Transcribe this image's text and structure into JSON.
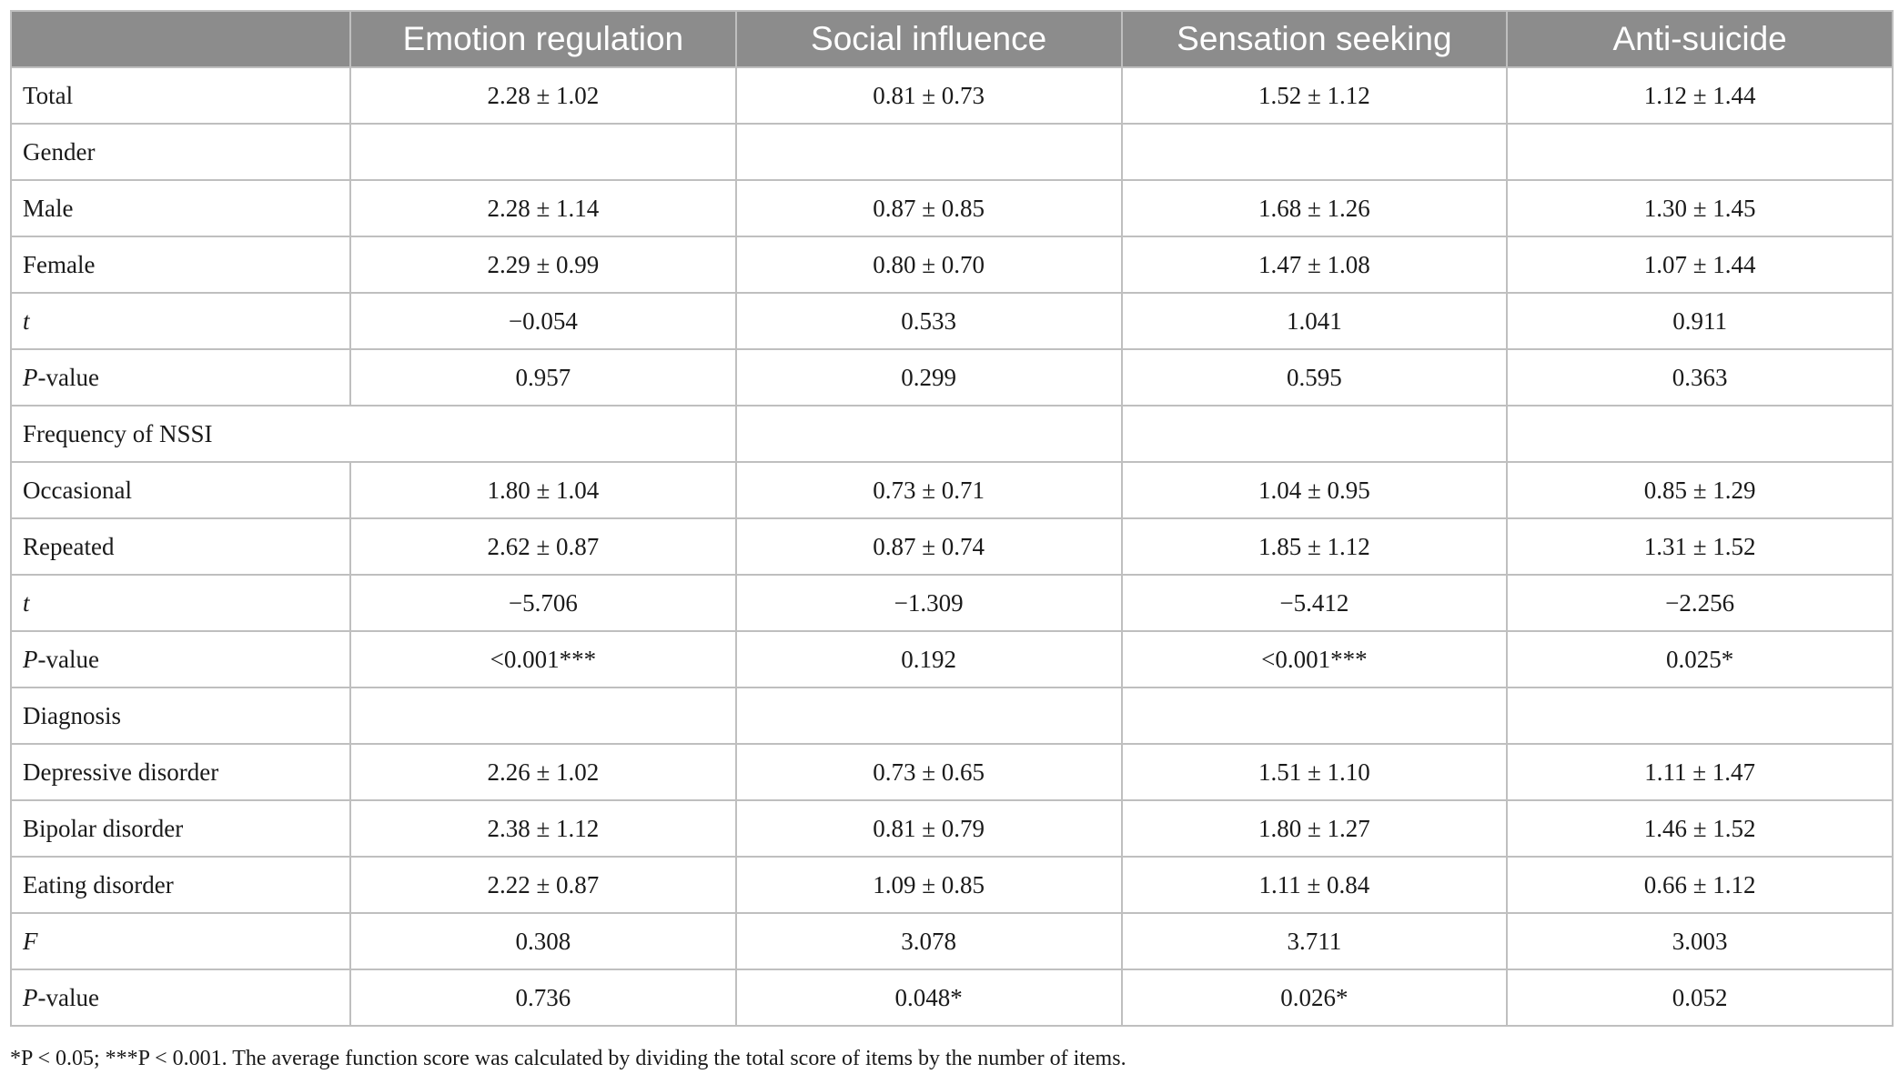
{
  "headers": [
    "",
    "Emotion regulation",
    "Social influence",
    "Sensation seeking",
    "Anti-suicide"
  ],
  "rows": [
    {
      "label": "Total",
      "cells": [
        "2.28 ± 1.02",
        "0.81 ± 0.73",
        "1.52 ± 1.12",
        "1.12 ± 1.44"
      ]
    },
    {
      "label": "Gender",
      "cells": [
        "",
        "",
        "",
        ""
      ]
    },
    {
      "label": "Male",
      "cells": [
        "2.28 ± 1.14",
        "0.87 ± 0.85",
        "1.68 ± 1.26",
        "1.30 ± 1.45"
      ]
    },
    {
      "label": "Female",
      "cells": [
        "2.29 ± 0.99",
        "0.80 ± 0.70",
        "1.47 ± 1.08",
        "1.07 ± 1.44"
      ]
    },
    {
      "label": "t",
      "cells": [
        "−0.054",
        "0.533",
        "1.041",
        "0.911"
      ]
    },
    {
      "label_italic": "P",
      "label_rest": "-value",
      "cells": [
        "0.957",
        "0.299",
        "0.595",
        "0.363"
      ]
    },
    {
      "label": "Frequency of NSSI",
      "cells": [
        "",
        "",
        "",
        ""
      ]
    },
    {
      "label": "Occasional",
      "cells": [
        "1.80 ± 1.04",
        "0.73 ± 0.71",
        "1.04 ± 0.95",
        "0.85 ± 1.29"
      ]
    },
    {
      "label": "Repeated",
      "cells": [
        "2.62 ± 0.87",
        "0.87 ± 0.74",
        "1.85 ± 1.12",
        "1.31 ± 1.52"
      ]
    },
    {
      "label": "t",
      "cells": [
        "−5.706",
        "−1.309",
        "−5.412",
        "−2.256"
      ]
    },
    {
      "label_italic": "P",
      "label_rest": "-value",
      "cells": [
        "<0.001***",
        "0.192",
        "<0.001***",
        "0.025*"
      ]
    },
    {
      "label": "Diagnosis",
      "cells": [
        "",
        "",
        "",
        ""
      ]
    },
    {
      "label": "Depressive disorder",
      "cells": [
        "2.26 ± 1.02",
        "0.73 ± 0.65",
        "1.51 ± 1.10",
        "1.11 ± 1.47"
      ]
    },
    {
      "label": "Bipolar disorder",
      "cells": [
        "2.38 ± 1.12",
        "0.81 ± 0.79",
        "1.80 ± 1.27",
        "1.46 ± 1.52"
      ]
    },
    {
      "label": "Eating disorder",
      "cells": [
        "2.22 ± 0.87",
        "1.09 ± 0.85",
        "1.11 ± 0.84",
        "0.66 ± 1.12"
      ]
    },
    {
      "label": "F",
      "cells": [
        "0.308",
        "3.078",
        "3.711",
        "3.003"
      ]
    },
    {
      "label_italic": "P",
      "label_rest": "-value",
      "cells": [
        "0.736",
        "0.048*",
        "0.026*",
        "0.052"
      ]
    }
  ],
  "footnote": "*P < 0.05; ***P < 0.001. The average function score was calculated by dividing the total score of items by the number of items."
}
